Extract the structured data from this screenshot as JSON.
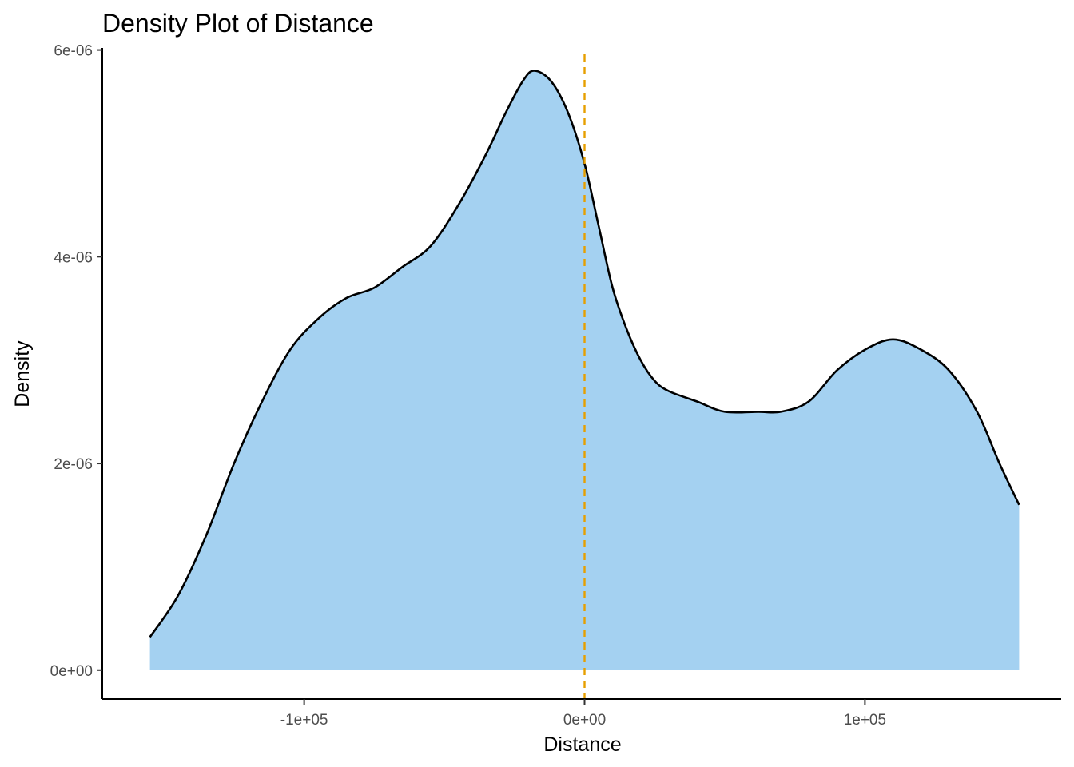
{
  "chart_data": {
    "type": "area",
    "title": "Density Plot of Distance",
    "xlabel": "Distance",
    "ylabel": "Density",
    "xlim": [
      -172000,
      170000
    ],
    "ylim": [
      -2.8e-07,
      6.02e-06
    ],
    "x_ticks": [
      -100000,
      0,
      100000
    ],
    "x_tick_labels": [
      "-1e+05",
      "0e+00",
      "1e+05"
    ],
    "y_ticks": [
      0,
      2e-06,
      4e-06,
      6e-06
    ],
    "y_tick_labels": [
      "0e+00",
      "2e-06",
      "4e-06",
      "6e-06"
    ],
    "grid": false,
    "legend": "none",
    "fill_color": "#a4d1f1",
    "line_color": "#000000",
    "reference_line": {
      "x": 0,
      "color": "#e69f00",
      "style": "dashed"
    },
    "series": [
      {
        "x": [
          -155000,
          -145000,
          -135000,
          -125000,
          -115000,
          -105000,
          -95000,
          -85000,
          -75000,
          -65000,
          -55000,
          -45000,
          -35000,
          -28000,
          -22000,
          -18000,
          -12000,
          -6000,
          0,
          5000,
          10000,
          15000,
          20000,
          25000,
          30000,
          40000,
          50000,
          62000,
          70000,
          80000,
          90000,
          100000,
          110000,
          120000,
          130000,
          140000,
          148000,
          155000
        ],
        "y": [
          3.2e-07,
          7.2e-07,
          1.3e-06,
          2e-06,
          2.6e-06,
          3.1e-06,
          3.4e-06,
          3.6e-06,
          3.7e-06,
          3.9e-06,
          4.1e-06,
          4.5e-06,
          5e-06,
          5.4e-06,
          5.7e-06,
          5.8e-06,
          5.7e-06,
          5.4e-06,
          4.9e-06,
          4.3e-06,
          3.7e-06,
          3.3e-06,
          3e-06,
          2.8e-06,
          2.7e-06,
          2.6e-06,
          2.5e-06,
          2.5e-06,
          2.5e-06,
          2.6e-06,
          2.9e-06,
          3.1e-06,
          3.2e-06,
          3.1e-06,
          2.9e-06,
          2.5e-06,
          2e-06,
          1.6e-06
        ]
      }
    ]
  }
}
